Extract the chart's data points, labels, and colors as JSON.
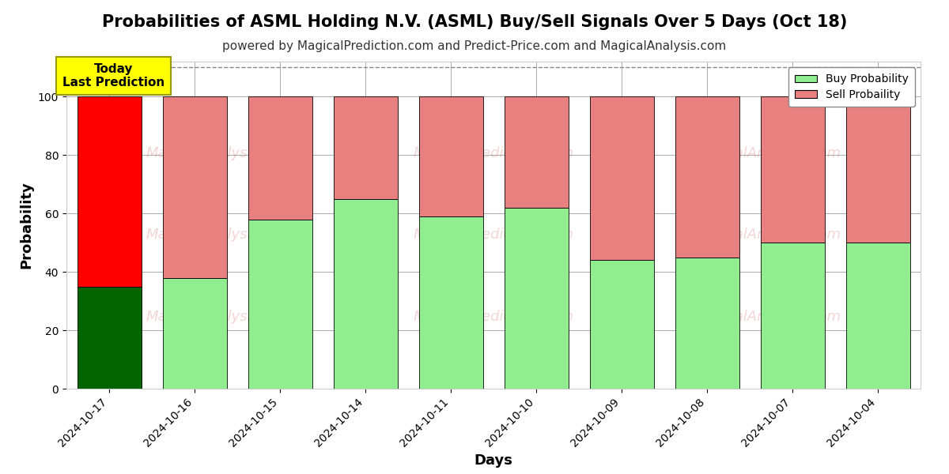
{
  "title": "Probabilities of ASML Holding N.V. (ASML) Buy/Sell Signals Over 5 Days (Oct 18)",
  "subtitle": "powered by MagicalPrediction.com and Predict-Price.com and MagicalAnalysis.com",
  "xlabel": "Days",
  "ylabel": "Probability",
  "categories": [
    "2024-10-17",
    "2024-10-16",
    "2024-10-15",
    "2024-10-14",
    "2024-10-11",
    "2024-10-10",
    "2024-10-09",
    "2024-10-08",
    "2024-10-07",
    "2024-10-04"
  ],
  "buy_values": [
    35,
    38,
    58,
    65,
    59,
    62,
    44,
    45,
    50,
    50
  ],
  "sell_values": [
    65,
    62,
    42,
    35,
    41,
    38,
    56,
    55,
    50,
    50
  ],
  "today_buy_color": "#006400",
  "today_sell_color": "#FF0000",
  "normal_buy_color": "#90EE90",
  "normal_sell_color": "#E88080",
  "bar_edge_color": "#000000",
  "today_annotation": "Today\nLast Prediction",
  "today_annotation_bg": "#FFFF00",
  "ylim": [
    0,
    112
  ],
  "dashed_line_y": 110,
  "legend_buy_label": "Buy Probability",
  "legend_sell_label": "Sell Probaility",
  "title_fontsize": 15,
  "subtitle_fontsize": 11,
  "axis_label_fontsize": 13,
  "tick_fontsize": 10,
  "background_color": "#ffffff",
  "grid_color": "#aaaaaa",
  "yticks": [
    0,
    20,
    40,
    60,
    80,
    100
  ]
}
